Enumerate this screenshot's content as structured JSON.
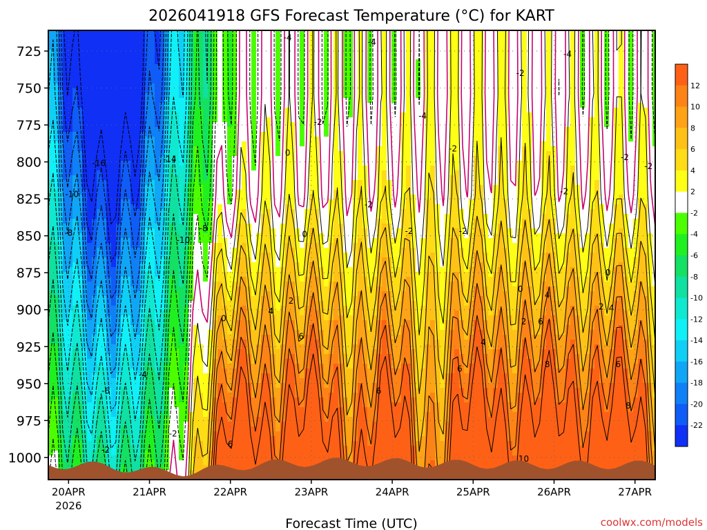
{
  "chart_data": {
    "type": "heatmap",
    "subtype": "filled-contour time-height cross-section",
    "title": "2026041918 GFS Forecast Temperature (°C) for KART",
    "xlabel": "Forecast Time (UTC)",
    "ylabel": "",
    "x_ticks": [
      {
        "label": "20APR",
        "sublabel": "2026",
        "hours": 6
      },
      {
        "label": "21APR",
        "hours": 30
      },
      {
        "label": "22APR",
        "hours": 54
      },
      {
        "label": "23APR",
        "hours": 78
      },
      {
        "label": "24APR",
        "hours": 102
      },
      {
        "label": "25APR",
        "hours": 126
      },
      {
        "label": "26APR",
        "hours": 150
      },
      {
        "label": "27APR",
        "hours": 174
      }
    ],
    "xlim_hours": [
      0,
      180
    ],
    "y_ticks": [
      725,
      750,
      775,
      800,
      825,
      850,
      875,
      900,
      925,
      950,
      975,
      1000
    ],
    "ylim_hpa": [
      711,
      1015
    ],
    "y_inverted": true,
    "colorbar": {
      "labels": [
        "12",
        "10",
        "8",
        "6",
        "4",
        "2",
        "-2",
        "-4",
        "-6",
        "-8",
        "-10",
        "-12",
        "-14",
        "-16",
        "-18",
        "-20",
        "-22"
      ],
      "bins": [
        {
          "lo": 12,
          "hi": 14,
          "color": "#fe6116"
        },
        {
          "lo": 10,
          "hi": 12,
          "color": "#fe8316"
        },
        {
          "lo": 8,
          "hi": 10,
          "color": "#fea216"
        },
        {
          "lo": 6,
          "hi": 8,
          "color": "#fec216"
        },
        {
          "lo": 4,
          "hi": 6,
          "color": "#fedc16"
        },
        {
          "lo": 2,
          "hi": 4,
          "color": "#fefe16"
        },
        {
          "lo": -2,
          "hi": 2,
          "color": "#ffffff"
        },
        {
          "lo": -4,
          "hi": -2,
          "color": "#4cff00"
        },
        {
          "lo": -6,
          "hi": -4,
          "color": "#20f020"
        },
        {
          "lo": -8,
          "hi": -6,
          "color": "#14e064"
        },
        {
          "lo": -10,
          "hi": -8,
          "color": "#10e0a0"
        },
        {
          "lo": -12,
          "hi": -10,
          "color": "#10e8d0"
        },
        {
          "lo": -14,
          "hi": -12,
          "color": "#10f0f6"
        },
        {
          "lo": -16,
          "hi": -14,
          "color": "#10cff6"
        },
        {
          "lo": -18,
          "hi": -16,
          "color": "#10a6f6"
        },
        {
          "lo": -20,
          "hi": -18,
          "color": "#1080f6"
        },
        {
          "lo": -22,
          "hi": -20,
          "color": "#105cf6"
        },
        {
          "lo": -24,
          "hi": -22,
          "color": "#1030f6"
        }
      ]
    },
    "freezing_line_color": "#c8006e",
    "ground_color": "#a0522d",
    "contour_labels": [
      {
        "text": "-4",
        "hours": 71,
        "hpa": 716
      },
      {
        "text": "-4",
        "hours": 96,
        "hpa": 719
      },
      {
        "text": "-4",
        "hours": 154,
        "hpa": 727
      },
      {
        "text": "-2",
        "hours": 140,
        "hpa": 740
      },
      {
        "text": "-2",
        "hours": 80,
        "hpa": 773
      },
      {
        "text": "0",
        "hours": 71,
        "hpa": 794
      },
      {
        "text": "-4",
        "hours": 111,
        "hpa": 769
      },
      {
        "text": "-2",
        "hours": 120,
        "hpa": 791
      },
      {
        "text": "-2",
        "hours": 171,
        "hpa": 797
      },
      {
        "text": "-2",
        "hours": 178,
        "hpa": 803
      },
      {
        "text": "-2",
        "hours": 153,
        "hpa": 820
      },
      {
        "text": "-14",
        "hours": 36,
        "hpa": 798
      },
      {
        "text": "-16",
        "hours": 15,
        "hpa": 801
      },
      {
        "text": "-10",
        "hours": 7,
        "hpa": 822
      },
      {
        "text": "-8",
        "hours": 46,
        "hpa": 845
      },
      {
        "text": "-10",
        "hours": 40,
        "hpa": 853
      },
      {
        "text": "-8",
        "hours": 6,
        "hpa": 848
      },
      {
        "text": "-2",
        "hours": 95,
        "hpa": 829
      },
      {
        "text": "0",
        "hours": 76,
        "hpa": 849
      },
      {
        "text": "-2",
        "hours": 107,
        "hpa": 847
      },
      {
        "text": "-2",
        "hours": 123,
        "hpa": 847
      },
      {
        "text": "0",
        "hours": 166,
        "hpa": 875
      },
      {
        "text": "0",
        "hours": 140,
        "hpa": 886
      },
      {
        "text": "4",
        "hours": 148,
        "hpa": 890
      },
      {
        "text": "2",
        "hours": 72,
        "hpa": 894
      },
      {
        "text": "4",
        "hours": 66,
        "hpa": 901
      },
      {
        "text": "2",
        "hours": 164,
        "hpa": 898
      },
      {
        "text": "4",
        "hours": 167,
        "hpa": 899
      },
      {
        "text": "0",
        "hours": 52,
        "hpa": 906
      },
      {
        "text": "2",
        "hours": 141,
        "hpa": 908
      },
      {
        "text": "6",
        "hours": 146,
        "hpa": 908
      },
      {
        "text": "6",
        "hours": 75,
        "hpa": 918
      },
      {
        "text": "4",
        "hours": 129,
        "hpa": 922
      },
      {
        "text": "-4",
        "hours": 28,
        "hpa": 944
      },
      {
        "text": "8",
        "hours": 148,
        "hpa": 937
      },
      {
        "text": "6",
        "hours": 122,
        "hpa": 940
      },
      {
        "text": "6",
        "hours": 169,
        "hpa": 937
      },
      {
        "text": "-6",
        "hours": 17,
        "hpa": 955
      },
      {
        "text": "6",
        "hours": 98,
        "hpa": 955
      },
      {
        "text": "8",
        "hours": 172,
        "hpa": 965
      },
      {
        "text": "-2",
        "hours": 37,
        "hpa": 984
      },
      {
        "text": "6",
        "hours": 54,
        "hpa": 991
      },
      {
        "text": "-2",
        "hours": 17,
        "hpa": 995
      },
      {
        "text": "10",
        "hours": 141,
        "hpa": 1001
      }
    ]
  },
  "footer": {
    "credit": "coolwx.com/models"
  }
}
